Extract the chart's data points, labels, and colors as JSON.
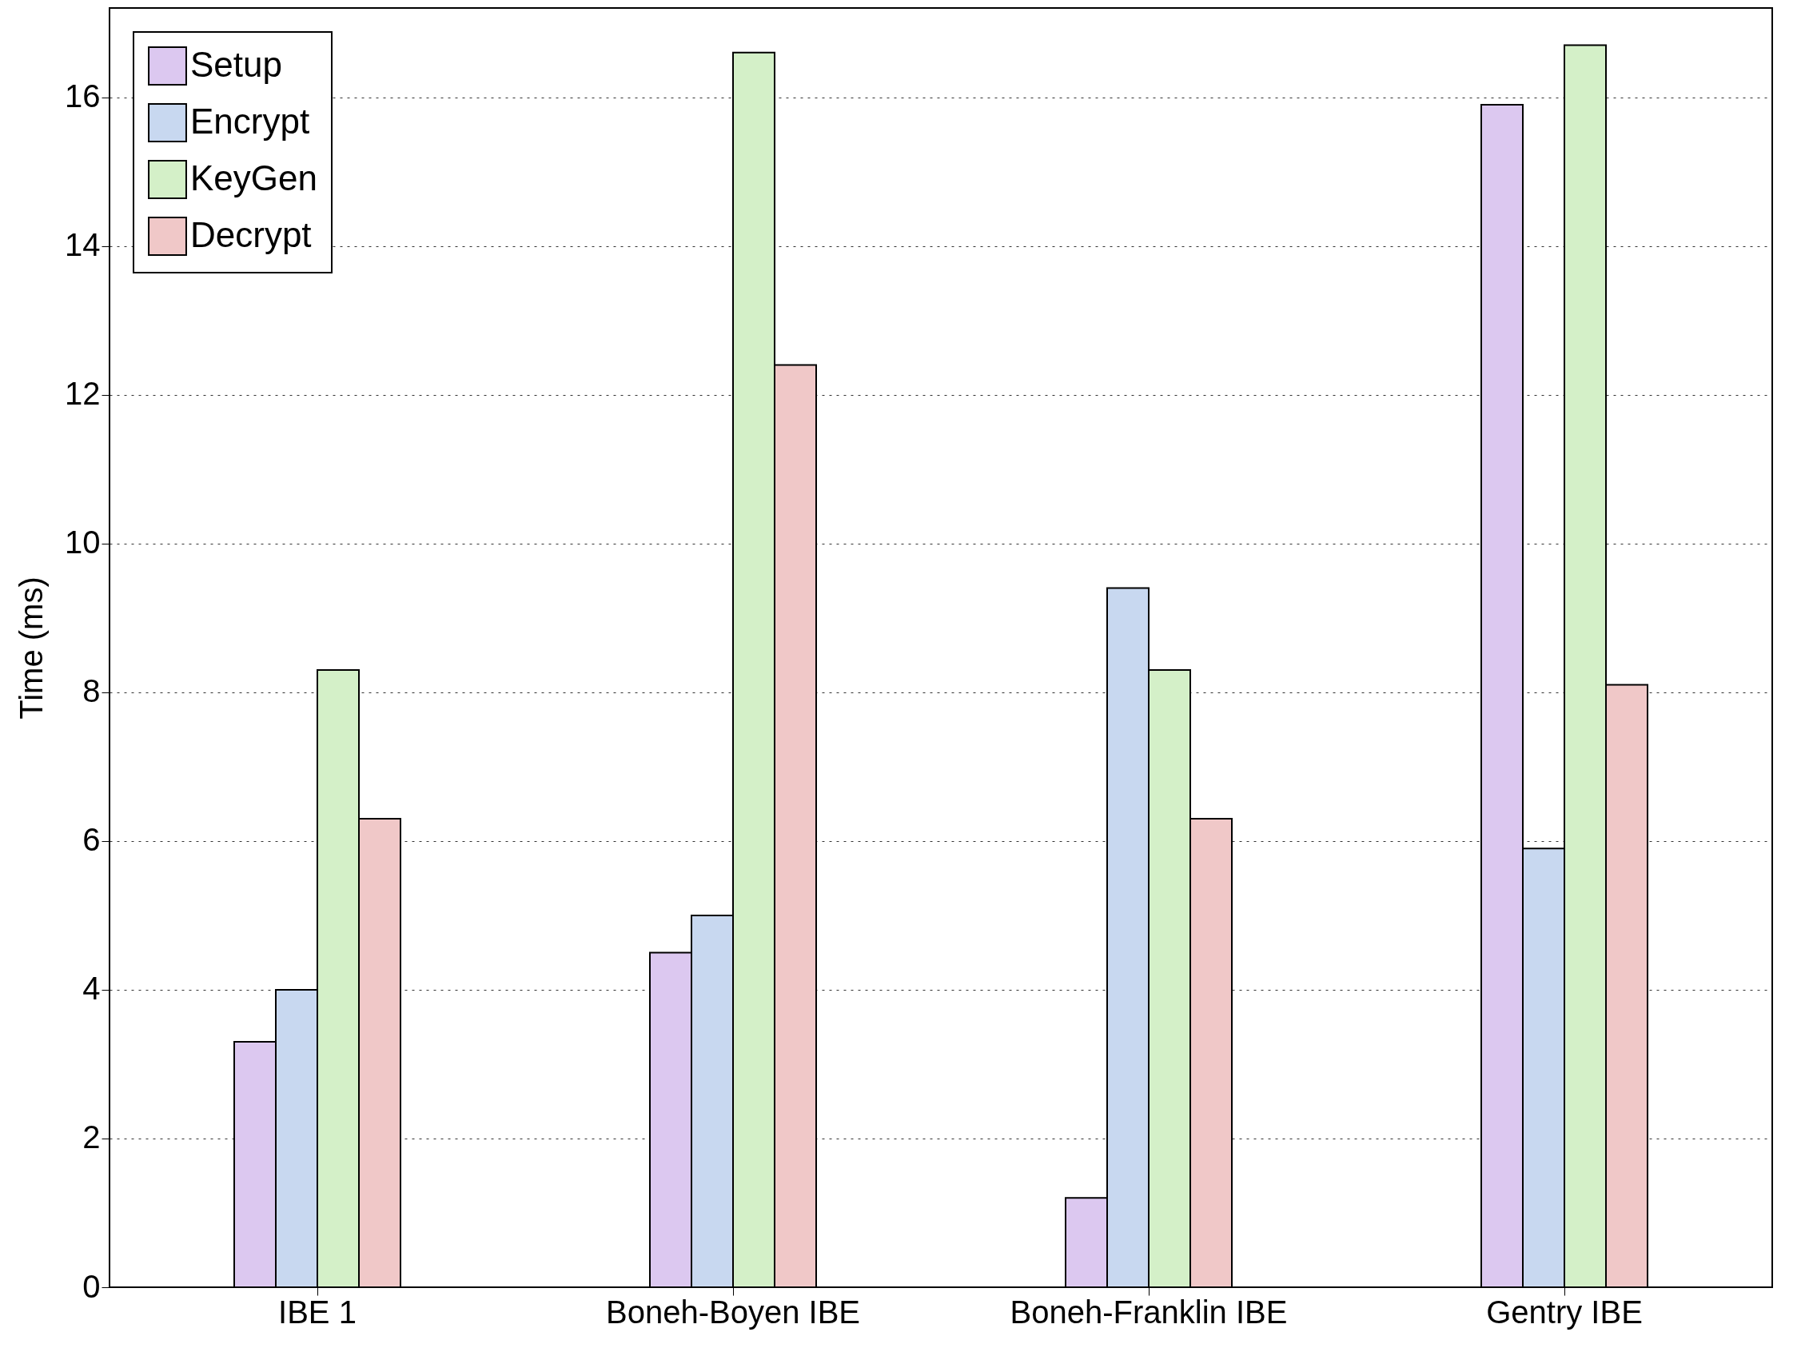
{
  "chart_data": {
    "type": "bar",
    "ylabel": "Time (ms)",
    "categories": [
      "IBE 1",
      "Boneh-Boyen IBE",
      "Boneh-Franklin IBE",
      "Gentry IBE"
    ],
    "series": [
      {
        "name": "Setup",
        "color": "#dcc8f0",
        "values": [
          3.3,
          4.5,
          1.2,
          15.9
        ]
      },
      {
        "name": "Encrypt",
        "color": "#c8d8f0",
        "values": [
          4.0,
          5.0,
          9.4,
          5.9
        ]
      },
      {
        "name": "KeyGen",
        "color": "#d4f0c8",
        "values": [
          8.3,
          16.6,
          8.3,
          16.7
        ]
      },
      {
        "name": "Decrypt",
        "color": "#f0c8c8",
        "values": [
          6.3,
          12.4,
          6.3,
          8.1
        ]
      }
    ],
    "ylim": [
      0,
      17.2
    ],
    "yticks": [
      0,
      2,
      4,
      6,
      8,
      10,
      12,
      14,
      16
    ],
    "grid": "y",
    "legend": "top left"
  }
}
